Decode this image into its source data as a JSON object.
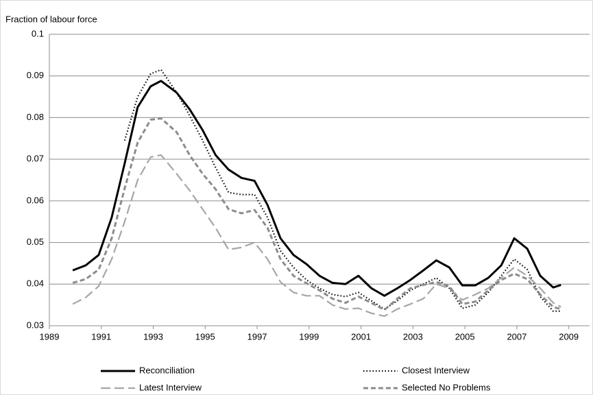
{
  "chart_data": {
    "type": "line",
    "y_label": "Fraction of labour force",
    "x": [
      1989.9,
      1990.4,
      1990.9,
      1991.4,
      1991.9,
      1992.4,
      1992.9,
      1993.3,
      1993.9,
      1994.4,
      1994.9,
      1995.4,
      1995.9,
      1996.4,
      1996.9,
      1997.4,
      1997.9,
      1998.4,
      1998.9,
      1999.4,
      1999.9,
      2000.4,
      2000.9,
      2001.4,
      2001.9,
      2002.4,
      2002.9,
      2003.4,
      2003.9,
      2004.4,
      2004.9,
      2005.4,
      2005.9,
      2006.4,
      2006.9,
      2007.4,
      2007.9,
      2008.4,
      2008.7
    ],
    "series": [
      {
        "name": "Reconciliation",
        "color": "#000000",
        "dash": "solid",
        "width": 3,
        "values": [
          0.0433,
          0.0445,
          0.047,
          0.056,
          0.069,
          0.0825,
          0.0875,
          0.0888,
          0.086,
          0.082,
          0.077,
          0.071,
          0.0675,
          0.0655,
          0.0648,
          0.059,
          0.051,
          0.047,
          0.0448,
          0.042,
          0.0403,
          0.04,
          0.042,
          0.039,
          0.0372,
          0.039,
          0.041,
          0.0433,
          0.0457,
          0.044,
          0.0397,
          0.0397,
          0.0415,
          0.0445,
          0.051,
          0.0485,
          0.042,
          0.0392,
          0.0398
        ]
      },
      {
        "name": "Closest Interview",
        "color": "#000000",
        "dash": "dotted",
        "width": 2.2,
        "values": [
          null,
          null,
          null,
          null,
          0.0745,
          0.085,
          0.0905,
          0.0915,
          0.086,
          0.0805,
          0.0745,
          0.068,
          0.062,
          0.0615,
          0.0615,
          0.056,
          0.048,
          0.044,
          0.041,
          0.039,
          0.0375,
          0.037,
          0.038,
          0.036,
          0.034,
          0.036,
          0.0385,
          0.04,
          0.0415,
          0.039,
          0.0342,
          0.035,
          0.038,
          0.042,
          0.046,
          0.0435,
          0.037,
          0.0335,
          0.0335
        ]
      },
      {
        "name": "Latest Interview",
        "color": "#a6a6a6",
        "dash": "long-dash",
        "width": 2.2,
        "values": [
          0.0352,
          0.0368,
          0.0395,
          0.046,
          0.055,
          0.065,
          0.0705,
          0.071,
          0.0665,
          0.0625,
          0.058,
          0.0535,
          0.0483,
          0.0488,
          0.05,
          0.046,
          0.0405,
          0.038,
          0.0372,
          0.0372,
          0.035,
          0.034,
          0.0342,
          0.033,
          0.0323,
          0.034,
          0.0352,
          0.0365,
          0.04,
          0.039,
          0.0362,
          0.0375,
          0.039,
          0.0415,
          0.044,
          0.042,
          0.039,
          0.0355,
          0.0345
        ]
      },
      {
        "name": "Selected No Problems",
        "color": "#8c8c8c",
        "dash": "dash",
        "width": 3,
        "values": [
          0.0403,
          0.0412,
          0.0435,
          0.051,
          0.063,
          0.074,
          0.0795,
          0.0798,
          0.0765,
          0.071,
          0.0665,
          0.0628,
          0.058,
          0.057,
          0.0578,
          0.0535,
          0.046,
          0.042,
          0.0402,
          0.0385,
          0.0365,
          0.0355,
          0.037,
          0.0355,
          0.0338,
          0.0365,
          0.039,
          0.0398,
          0.0405,
          0.0395,
          0.0352,
          0.0358,
          0.0385,
          0.041,
          0.0425,
          0.0412,
          0.0375,
          0.0345,
          0.034
        ]
      }
    ],
    "xlim": [
      1989,
      2009.8
    ],
    "xticks": [
      1989,
      1991,
      1993,
      1995,
      1997,
      1999,
      2001,
      2003,
      2005,
      2007,
      2009
    ],
    "ylim": [
      0.03,
      0.1
    ],
    "yticks": [
      0.03,
      0.04,
      0.05,
      0.06,
      0.07,
      0.08,
      0.09,
      0.1
    ],
    "grid": true,
    "legend": "bottom"
  }
}
